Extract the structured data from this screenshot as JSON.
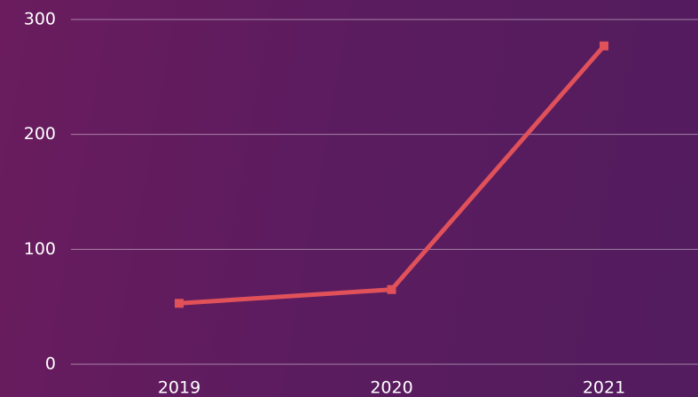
{
  "chart_data": {
    "type": "line",
    "categories": [
      "2019",
      "2020",
      "2021"
    ],
    "series": [
      {
        "color": "#e0515a",
        "values": [
          53,
          65,
          277
        ]
      }
    ],
    "ylim": [
      0,
      300
    ],
    "yticks": [
      0,
      100,
      200,
      300
    ],
    "grid": true
  }
}
